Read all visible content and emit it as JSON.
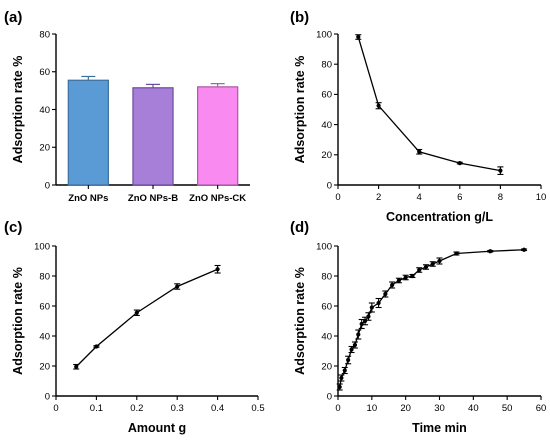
{
  "chart_data": [
    {
      "type": "bar",
      "panel_label": "(a)",
      "ylabel": "Adsorption rate %",
      "xlabel": "",
      "ylim": [
        0,
        80
      ],
      "yticks": [
        0,
        20,
        40,
        60,
        80
      ],
      "categories": [
        "ZnO NPs",
        "ZnO NPs-B",
        "ZnO NPs-CK"
      ],
      "values": [
        55.5,
        51.5,
        52
      ],
      "errors": [
        2,
        1.8,
        1.7
      ],
      "colors": [
        "#5b9bd5",
        "#a87fd8",
        "#f98af0"
      ],
      "edge_colors": [
        "#3f6f9e",
        "#6c4c9a",
        "#a85aa6"
      ]
    },
    {
      "type": "line",
      "panel_label": "(b)",
      "ylabel": "Adsorption rate %",
      "xlabel": "Concentration g/L",
      "xlim": [
        0,
        10
      ],
      "ylim": [
        0,
        100
      ],
      "xticks": [
        0,
        2,
        4,
        6,
        8,
        10
      ],
      "yticks": [
        0,
        20,
        40,
        60,
        80,
        100
      ],
      "x": [
        1,
        2,
        4,
        6,
        8
      ],
      "y": [
        98,
        52.5,
        22,
        14.5,
        9.5
      ],
      "errors": [
        1.5,
        2,
        1.5,
        0.5,
        2.5
      ]
    },
    {
      "type": "line",
      "panel_label": "(c)",
      "ylabel": "Adsorption rate %",
      "xlabel": "Amount g",
      "xlim": [
        0,
        0.5
      ],
      "ylim": [
        0,
        100
      ],
      "xticks": [
        0,
        0.1,
        0.2,
        0.3,
        0.4,
        0.5
      ],
      "yticks": [
        0,
        20,
        40,
        60,
        80,
        100
      ],
      "x": [
        0.05,
        0.1,
        0.2,
        0.3,
        0.4
      ],
      "y": [
        19.5,
        33,
        55.5,
        73,
        84.5
      ],
      "errors": [
        1.5,
        0.5,
        1.8,
        1.8,
        2.5
      ]
    },
    {
      "type": "line",
      "panel_label": "(d)",
      "ylabel": "Adsorption rate %",
      "xlabel": "Time min",
      "xlim": [
        0,
        60
      ],
      "ylim": [
        0,
        100
      ],
      "xticks": [
        0,
        10,
        20,
        30,
        40,
        50,
        60
      ],
      "yticks": [
        0,
        20,
        40,
        60,
        80,
        100
      ],
      "x": [
        0.5,
        1,
        2,
        3,
        4,
        5,
        6,
        7,
        8,
        9,
        10,
        12,
        14,
        16,
        18,
        20,
        22,
        24,
        26,
        28,
        30,
        35,
        45,
        55
      ],
      "y": [
        6,
        12,
        17,
        24,
        31,
        34,
        41,
        48,
        50,
        53,
        59,
        62,
        68,
        74,
        77,
        79,
        80,
        84,
        86,
        88,
        90,
        95,
        96.5,
        97.5
      ],
      "errors": [
        2,
        2,
        2,
        2.5,
        2,
        2,
        3,
        3,
        2.5,
        2.5,
        3,
        3,
        2,
        2,
        1.5,
        1.5,
        1,
        1.5,
        1.5,
        1.5,
        2,
        1,
        0.5,
        0.5
      ]
    }
  ]
}
